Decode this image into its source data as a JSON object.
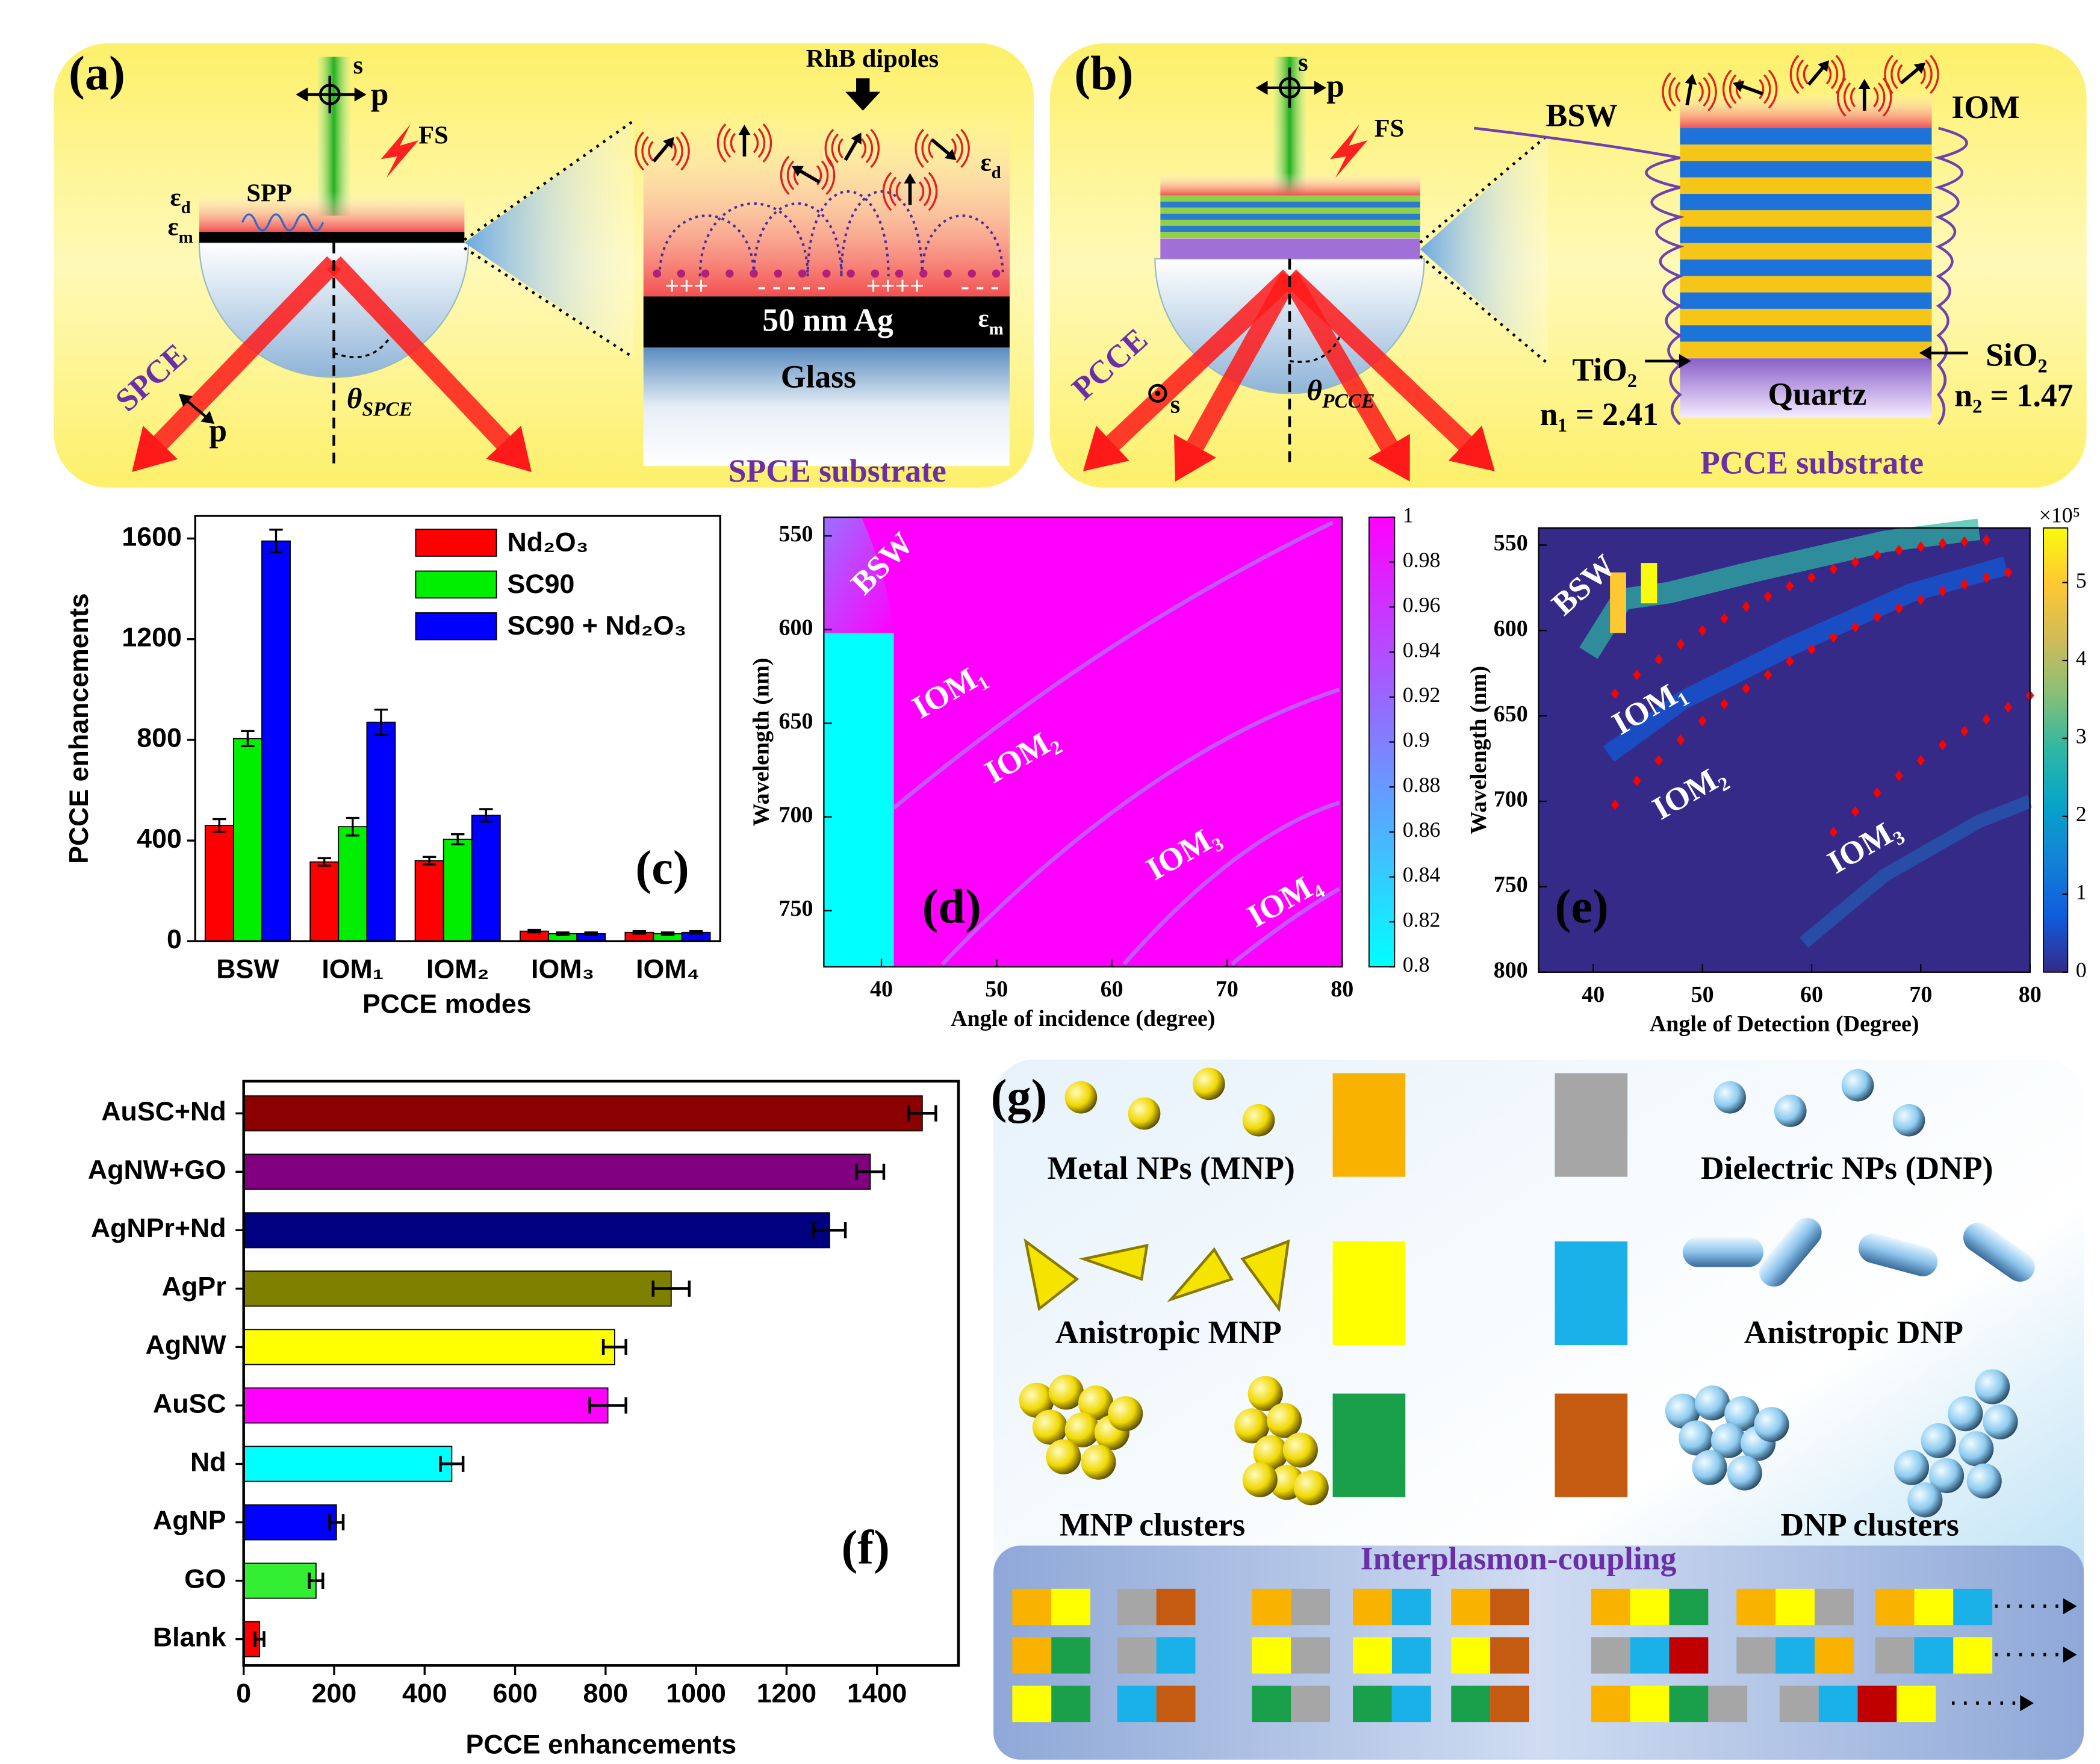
{
  "panel_a": {
    "label": "(a)",
    "s": "s",
    "p": "p",
    "fs": "FS",
    "spp": "SPP",
    "eps_d": {
      "base": "ε",
      "sub": "d"
    },
    "eps_m": {
      "base": "ε",
      "sub": "m"
    },
    "dipoles": "RhB dipoles",
    "charges": [
      "+++",
      "- - - - -",
      "++++",
      "- - -"
    ],
    "metal": "50 nm Ag",
    "eps_d_zoom": {
      "base": "ε",
      "sub": "d"
    },
    "eps_m_zoom": {
      "base": "ε",
      "sub": "m"
    },
    "glass": "Glass",
    "mode": "SPCE",
    "p_out": "p",
    "angle": {
      "base": "θ",
      "sub": "SPCE"
    },
    "caption": "SPCE substrate"
  },
  "panel_b": {
    "label": "(b)",
    "s": "s",
    "p": "p",
    "fs": "FS",
    "bsw": "BSW",
    "iom": "IOM",
    "tio2": "TiO₂",
    "n1": "n₁ = 2.41",
    "quartz": "Quartz",
    "sio2": "SiO₂",
    "n2": "n₂ = 1.47",
    "mode": "PCCE",
    "s_out": "s",
    "angle": {
      "base": "θ",
      "sub": "PCCE"
    },
    "caption": "PCCE substrate"
  },
  "panel_g": {
    "label": "(g)",
    "metal": "Metal NPs (MNP)",
    "dielectric": "Dielectric NPs (DNP)",
    "aniso_metal": "Anistropic MNP",
    "aniso_dielectric": "Anistropic DNP",
    "metal_clusters": "MNP clusters",
    "dielectric_clusters": "DNP clusters",
    "coupling": "Interplasmon-coupling"
  },
  "chart_data": [
    {
      "type": "bar",
      "label": "(c)",
      "categories": [
        "BSW",
        "IOM₁",
        "IOM₂",
        "IOM₃",
        "IOM₄"
      ],
      "series": [
        {
          "name": "Nd₂O₃",
          "color": "#ff0000",
          "values": [
            460,
            315,
            320,
            40,
            35
          ],
          "errors": [
            25,
            15,
            15,
            5,
            5
          ]
        },
        {
          "name": "SC90",
          "color": "#00ee00",
          "values": [
            805,
            455,
            405,
            30,
            30
          ],
          "errors": [
            30,
            35,
            20,
            5,
            5
          ]
        },
        {
          "name": "SC90 + Nd₂O₃",
          "color": "#0000ff",
          "values": [
            1590,
            870,
            500,
            30,
            35
          ],
          "errors": [
            45,
            50,
            25,
            5,
            5
          ]
        }
      ],
      "ylim": [
        0,
        1690
      ],
      "yticks": [
        0,
        400,
        800,
        1200,
        1600
      ],
      "ylabel": "PCCE enhancements",
      "xlabel": "PCCE modes",
      "legend": "upper right"
    },
    {
      "type": "heatmap",
      "label": "(d)",
      "xlabel": "Angle of incidence (degree)",
      "ylabel": "Wavelength (nm)",
      "xlim": [
        35,
        80
      ],
      "xticks": [
        40,
        50,
        60,
        70,
        80
      ],
      "ylim": [
        780,
        540
      ],
      "yticks": [
        550,
        600,
        650,
        700,
        750
      ],
      "clim": [
        0.8,
        1
      ],
      "cticks": [
        0.8,
        0.82,
        0.84,
        0.86,
        0.88,
        0.9,
        0.92,
        0.94,
        0.96,
        0.98,
        1
      ],
      "colormap": [
        "#00ffff",
        "#8080ff",
        "#ff00ff"
      ],
      "annotations": [
        "BSW",
        "IOM₁",
        "IOM₂",
        "IOM₃",
        "IOM₄"
      ]
    },
    {
      "type": "heatmap",
      "label": "(e)",
      "xlabel": "Angle of Detection (Degree)",
      "ylabel": "Wavelength (nm)",
      "xlim": [
        35,
        80
      ],
      "xticks": [
        40,
        50,
        60,
        70,
        80
      ],
      "ylim": [
        800,
        540
      ],
      "yticks": [
        550,
        600,
        650,
        700,
        750,
        800
      ],
      "clim": [
        0,
        5.7
      ],
      "cticks": [
        0,
        1,
        2,
        3,
        4,
        5
      ],
      "cscale_label": "×10⁵",
      "colormap": [
        "#352a87",
        "#0f5cdd",
        "#1481d6",
        "#06a4ca",
        "#2eb7a4",
        "#87bf77",
        "#d1bb59",
        "#fec832",
        "#f9fb0e"
      ],
      "annotations": [
        "BSW",
        "IOM₁",
        "IOM₂",
        "IOM₃"
      ],
      "points": [
        {
          "color": "#ff0000",
          "x": [
            42,
            44,
            46,
            48,
            50,
            52,
            54,
            56,
            58,
            60,
            62,
            64,
            66,
            68,
            70,
            72,
            74,
            76
          ],
          "values": [
            637,
            626,
            617,
            608,
            600,
            593,
            586,
            580,
            574,
            569,
            564,
            560,
            556,
            553,
            551,
            549,
            548,
            547
          ]
        },
        {
          "color": "#ff0000",
          "x": [
            42,
            44,
            46,
            48,
            50,
            52,
            54,
            56,
            58,
            60,
            62,
            64,
            66,
            68,
            70,
            72,
            74,
            76,
            78
          ],
          "values": [
            702,
            688,
            676,
            664,
            653,
            643,
            634,
            626,
            618,
            611,
            604,
            598,
            592,
            587,
            582,
            577,
            573,
            569,
            566
          ]
        },
        {
          "color": "#ff0000",
          "x": [
            62,
            64,
            66,
            68,
            70,
            72,
            74,
            76,
            78,
            80
          ],
          "values": [
            718,
            706,
            695,
            685,
            676,
            667,
            659,
            652,
            645,
            638
          ]
        }
      ]
    },
    {
      "type": "hbar",
      "label": "(f)",
      "categories": [
        "AuSC+Nd",
        "AgNW+GO",
        "AgNPr+Nd",
        "AgPr",
        "AgNW",
        "AuSC",
        "Nd",
        "AgNP",
        "GO",
        "Blank"
      ],
      "values": [
        1500,
        1385,
        1295,
        945,
        820,
        805,
        460,
        205,
        160,
        35
      ],
      "errors": [
        30,
        30,
        35,
        40,
        25,
        40,
        25,
        15,
        15,
        10
      ],
      "colors": [
        "#8b0000",
        "#800080",
        "#000080",
        "#808000",
        "#ffff00",
        "#ff00ff",
        "#00ffff",
        "#0000ff",
        "#33ee33",
        "#ff0000"
      ],
      "xlim": [
        0,
        1580
      ],
      "xticks": [
        0,
        200,
        400,
        600,
        800,
        1000,
        1200,
        1400
      ],
      "xlabel": "PCCE enhancements"
    }
  ]
}
